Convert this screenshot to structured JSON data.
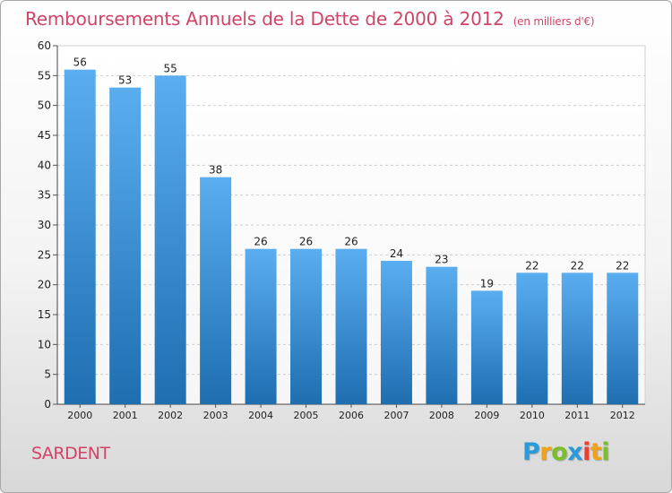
{
  "title": "Remboursements Annuels de la Dette de 2000 à 2012",
  "unit": "(en milliers d'€)",
  "city": "SARDENT",
  "brand": {
    "letters": [
      "P",
      "r",
      "o",
      "x",
      "i",
      "t",
      "i"
    ],
    "colors": [
      "#2a9ad8",
      "#f0a21a",
      "#7cbf2a",
      "#2a9ad8",
      "#e8412e",
      "#f0a21a",
      "#7cbf2a"
    ]
  },
  "colors": {
    "title": "#d04468",
    "bar_top": "#5aaef0",
    "bar_bottom": "#1e6eb0",
    "grid": "#cfcfcf",
    "axis_text": "#222222"
  },
  "chart_data": {
    "type": "bar",
    "categories": [
      "2000",
      "2001",
      "2002",
      "2003",
      "2004",
      "2005",
      "2006",
      "2007",
      "2008",
      "2009",
      "2010",
      "2011",
      "2012"
    ],
    "values": [
      56,
      53,
      55,
      38,
      26,
      26,
      26,
      24,
      23,
      19,
      22,
      22,
      22
    ],
    "ylim": [
      0,
      60
    ],
    "yticks": [
      0,
      5,
      10,
      15,
      20,
      25,
      30,
      35,
      40,
      45,
      50,
      55,
      60
    ],
    "grid": "horizontal dashed",
    "data_labels": true
  }
}
